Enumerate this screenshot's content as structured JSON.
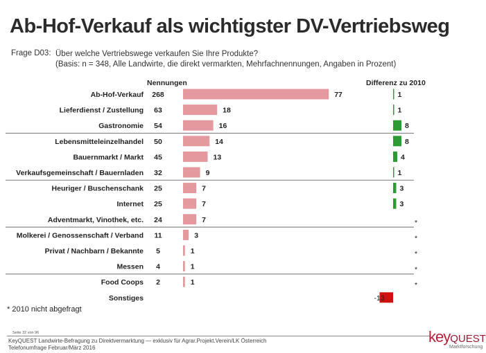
{
  "title": "Ab-Hof-Verkauf als wichtigster DV-Vertriebsweg",
  "question": {
    "label": "Frage D03:",
    "line1": "Über welche Vertriebswege verkaufen Sie Ihre Produkte?",
    "line2": "(Basis: n = 348, Alle Landwirte, die direkt vermarkten, Mehrfachnennungen, Angaben in Prozent)"
  },
  "chart_data": {
    "type": "bar",
    "orientation": "horizontal",
    "title": "Ab-Hof-Verkauf als wichtigster DV-Vertriebsweg",
    "column_headers": {
      "count": "Nennungen",
      "diff": "Differenz zu 2010"
    },
    "categories": [
      "Ab-Hof-Verkauf",
      "Lieferdienst / Zustellung",
      "Gastronomie",
      "Lebensmitteleinzelhandel",
      "Bauernmarkt / Markt",
      "Verkaufsgemeinschaft / Bauernladen",
      "Heuriger / Buschenschank",
      "Internet",
      "Adventmarkt, Vinothek, etc.",
      "Molkerei / Genossenschaft / Verband",
      "Privat / Nachbarn / Bekannte",
      "Messen",
      "Food Coops",
      "Sonstiges"
    ],
    "series": [
      {
        "name": "Nennungen",
        "values": [
          268,
          63,
          54,
          50,
          45,
          32,
          25,
          25,
          24,
          11,
          5,
          4,
          2,
          null
        ]
      },
      {
        "name": "Prozent",
        "values": [
          77,
          18,
          16,
          14,
          13,
          9,
          7,
          7,
          7,
          3,
          1,
          1,
          1,
          null
        ]
      },
      {
        "name": "Differenz zu 2010",
        "values": [
          1,
          1,
          8,
          8,
          4,
          1,
          3,
          3,
          "*",
          "*",
          "*",
          "*",
          "*",
          -13
        ]
      }
    ],
    "group_separators_after": [
      2,
      5,
      8,
      11
    ],
    "colors": {
      "percent_bar": "#e3999d",
      "diff_positive": "#2e9a33",
      "diff_negative": "#d01010"
    },
    "legend": "none",
    "grid": false
  },
  "footnote": "* 2010 nicht abgefragt",
  "footer": {
    "page": "Seite 32 von 96",
    "line1": "KeyQUEST Landwirte-Befragung zu Direktvermarktung — exklusiv für Agrar.Projekt.Verein/LK Österreich",
    "line2": "Telefonumfrage Februar/März 2016"
  },
  "logo": {
    "key": "key",
    "quest": "QUEST",
    "sub": "Marktforschung"
  }
}
